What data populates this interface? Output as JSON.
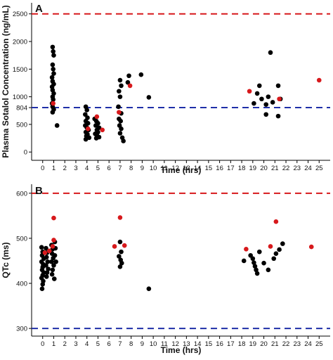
{
  "colors": {
    "black_point": "#000000",
    "red_point": "#d7191c",
    "upper_line": "#d7191c",
    "lower_line": "#1f2fa8"
  },
  "chart_data": [
    {
      "type": "scatter",
      "panel_label": "A",
      "xlabel": "Time (hrs)",
      "ylabel": "Plasma Sotalol Concentration (ng/mL)",
      "xlim": [
        -1,
        26
      ],
      "ylim": [
        -150,
        2700
      ],
      "x_ticks": [
        0,
        1,
        2,
        3,
        4,
        5,
        6,
        7,
        8,
        9,
        10,
        11,
        12,
        13,
        14,
        15,
        16,
        17,
        18,
        19,
        20,
        21,
        22,
        23,
        24,
        25
      ],
      "y_ticks": [
        0,
        500,
        804,
        1000,
        1500,
        2000,
        2500
      ],
      "reference_lines": [
        {
          "y": 2500,
          "color": "red",
          "style": "dashed"
        },
        {
          "y": 804,
          "color": "blue",
          "style": "dashed"
        }
      ],
      "grid": false,
      "series": [
        {
          "color": "black",
          "points": [
            [
              0.9,
              1900
            ],
            [
              0.95,
              1820
            ],
            [
              1.0,
              1750
            ],
            [
              0.9,
              1580
            ],
            [
              0.95,
              1500
            ],
            [
              1.0,
              1420
            ],
            [
              0.85,
              1350
            ],
            [
              0.9,
              1280
            ],
            [
              1.0,
              1230
            ],
            [
              0.85,
              1180
            ],
            [
              0.9,
              1120
            ],
            [
              1.0,
              1060
            ],
            [
              0.9,
              1000
            ],
            [
              0.95,
              950
            ],
            [
              0.85,
              880
            ],
            [
              0.9,
              820
            ],
            [
              1.0,
              770
            ],
            [
              0.9,
              720
            ],
            [
              1.3,
              480
            ],
            [
              3.9,
              820
            ],
            [
              4.0,
              760
            ],
            [
              3.85,
              680
            ],
            [
              4.05,
              620
            ],
            [
              3.9,
              560
            ],
            [
              4.1,
              520
            ],
            [
              3.85,
              480
            ],
            [
              4.0,
              440
            ],
            [
              4.15,
              400
            ],
            [
              3.9,
              360
            ],
            [
              4.05,
              320
            ],
            [
              3.95,
              290
            ],
            [
              4.2,
              260
            ],
            [
              3.9,
              230
            ],
            [
              4.7,
              600
            ],
            [
              4.85,
              560
            ],
            [
              5.0,
              520
            ],
            [
              4.8,
              480
            ],
            [
              5.1,
              440
            ],
            [
              4.9,
              400
            ],
            [
              5.0,
              360
            ],
            [
              4.75,
              330
            ],
            [
              4.9,
              300
            ],
            [
              5.1,
              270
            ],
            [
              4.85,
              250
            ],
            [
              7.0,
              1300
            ],
            [
              7.1,
              1200
            ],
            [
              6.9,
              1100
            ],
            [
              7.0,
              1000
            ],
            [
              6.85,
              820
            ],
            [
              7.1,
              700
            ],
            [
              6.9,
              600
            ],
            [
              7.05,
              560
            ],
            [
              6.95,
              480
            ],
            [
              7.1,
              420
            ],
            [
              7.0,
              340
            ],
            [
              7.2,
              260
            ],
            [
              7.3,
              200
            ],
            [
              7.8,
              1380
            ],
            [
              7.7,
              1260
            ],
            [
              8.9,
              1400
            ],
            [
              9.6,
              990
            ],
            [
              19.1,
              880
            ],
            [
              19.4,
              1060
            ],
            [
              19.6,
              1200
            ],
            [
              19.8,
              960
            ],
            [
              20.2,
              860
            ],
            [
              20.2,
              680
            ],
            [
              20.4,
              1000
            ],
            [
              20.6,
              1800
            ],
            [
              20.8,
              900
            ],
            [
              21.3,
              1200
            ],
            [
              21.3,
              650
            ],
            [
              21.5,
              960
            ]
          ]
        },
        {
          "color": "red",
          "points": [
            [
              0.95,
              880
            ],
            [
              4.1,
              420
            ],
            [
              4.9,
              640
            ],
            [
              5.4,
              400
            ],
            [
              6.9,
              720
            ],
            [
              7.9,
              1200
            ],
            [
              18.7,
              1100
            ],
            [
              21.4,
              960
            ],
            [
              25.0,
              1300
            ]
          ]
        }
      ]
    },
    {
      "type": "scatter",
      "panel_label": "B",
      "xlabel": "Time (hrs)",
      "ylabel": "QTc (ms)",
      "xlim": [
        -1,
        26
      ],
      "ylim": [
        283,
        620
      ],
      "x_ticks": [
        0,
        1,
        2,
        3,
        4,
        5,
        6,
        7,
        8,
        9,
        10,
        11,
        12,
        13,
        14,
        15,
        16,
        17,
        18,
        19,
        20,
        21,
        22,
        23,
        24,
        25
      ],
      "y_ticks": [
        300,
        400,
        500,
        600
      ],
      "reference_lines": [
        {
          "y": 600,
          "color": "red",
          "style": "dashed"
        },
        {
          "y": 300,
          "color": "blue",
          "style": "dashed"
        }
      ],
      "grid": false,
      "series": [
        {
          "color": "black",
          "points": [
            [
              -0.1,
              480
            ],
            [
              0.0,
              470
            ],
            [
              -0.05,
              462
            ],
            [
              0.1,
              455
            ],
            [
              -0.1,
              448
            ],
            [
              0.05,
              442
            ],
            [
              0.0,
              436
            ],
            [
              -0.05,
              430
            ],
            [
              0.1,
              424
            ],
            [
              0.0,
              418
            ],
            [
              -0.1,
              412
            ],
            [
              0.05,
              405
            ],
            [
              0.0,
              398
            ],
            [
              -0.05,
              388
            ],
            [
              0.3,
              478
            ],
            [
              0.4,
              468
            ],
            [
              0.35,
              458
            ],
            [
              0.45,
              448
            ],
            [
              0.3,
              440
            ],
            [
              0.5,
              432
            ],
            [
              0.4,
              424
            ],
            [
              0.35,
              415
            ],
            [
              0.8,
              485
            ],
            [
              0.9,
              476
            ],
            [
              0.85,
              466
            ],
            [
              0.95,
              456
            ],
            [
              0.8,
              448
            ],
            [
              1.0,
              440
            ],
            [
              0.9,
              430
            ],
            [
              0.85,
              420
            ],
            [
              1.05,
              410
            ],
            [
              1.1,
              492
            ],
            [
              1.15,
              478
            ],
            [
              1.1,
              462
            ],
            [
              1.2,
              448
            ],
            [
              7.0,
              492
            ],
            [
              7.1,
              470
            ],
            [
              6.9,
              460
            ],
            [
              7.05,
              452
            ],
            [
              7.15,
              445
            ],
            [
              7.0,
              437
            ],
            [
              9.6,
              388
            ],
            [
              18.2,
              450
            ],
            [
              18.8,
              462
            ],
            [
              19.0,
              455
            ],
            [
              19.1,
              446
            ],
            [
              19.2,
              438
            ],
            [
              19.3,
              430
            ],
            [
              19.4,
              422
            ],
            [
              19.6,
              470
            ],
            [
              20.0,
              445
            ],
            [
              20.4,
              430
            ],
            [
              20.9,
              455
            ],
            [
              21.1,
              466
            ],
            [
              21.4,
              475
            ],
            [
              21.7,
              488
            ]
          ]
        },
        {
          "color": "red",
          "points": [
            [
              0.2,
              468
            ],
            [
              0.6,
              472
            ],
            [
              0.9,
              482
            ],
            [
              1.0,
              496
            ],
            [
              1.0,
              545
            ],
            [
              6.5,
              482
            ],
            [
              7.0,
              546
            ],
            [
              7.4,
              484
            ],
            [
              18.4,
              476
            ],
            [
              20.6,
              482
            ],
            [
              21.1,
              537
            ],
            [
              24.3,
              481
            ]
          ]
        }
      ]
    }
  ]
}
